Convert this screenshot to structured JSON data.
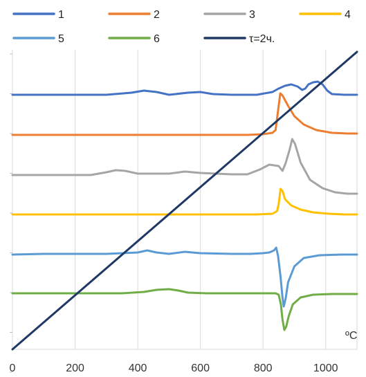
{
  "chart_data": {
    "type": "line",
    "title": "",
    "xlabel": "ºC",
    "ylabel": "",
    "xlim": [
      0,
      1100
    ],
    "x_ticks": [
      0,
      200,
      400,
      600,
      800,
      1000
    ],
    "grid": "vertical",
    "legend_position": "top",
    "series": [
      {
        "name": "1",
        "color": "#4472C4",
        "points": [
          [
            0,
            137
          ],
          [
            100,
            137
          ],
          [
            200,
            137
          ],
          [
            300,
            137
          ],
          [
            380,
            134
          ],
          [
            420,
            131
          ],
          [
            460,
            133
          ],
          [
            500,
            137
          ],
          [
            560,
            134
          ],
          [
            600,
            133
          ],
          [
            640,
            136
          ],
          [
            700,
            137
          ],
          [
            780,
            137
          ],
          [
            830,
            133
          ],
          [
            850,
            128
          ],
          [
            870,
            124
          ],
          [
            890,
            122
          ],
          [
            910,
            125
          ],
          [
            925,
            130
          ],
          [
            935,
            128
          ],
          [
            945,
            122
          ],
          [
            960,
            119
          ],
          [
            975,
            118
          ],
          [
            990,
            122
          ],
          [
            1005,
            131
          ],
          [
            1020,
            136
          ],
          [
            1060,
            137
          ],
          [
            1100,
            137
          ]
        ]
      },
      {
        "name": "2",
        "color": "#ED7D31",
        "points": [
          [
            0,
            195
          ],
          [
            200,
            195
          ],
          [
            400,
            195
          ],
          [
            600,
            195
          ],
          [
            750,
            195
          ],
          [
            800,
            194
          ],
          [
            830,
            192
          ],
          [
            840,
            188
          ],
          [
            848,
            160
          ],
          [
            855,
            135
          ],
          [
            862,
            138
          ],
          [
            880,
            153
          ],
          [
            900,
            168
          ],
          [
            930,
            180
          ],
          [
            970,
            188
          ],
          [
            1020,
            192
          ],
          [
            1070,
            193
          ],
          [
            1100,
            193
          ]
        ]
      },
      {
        "name": "3",
        "color": "#A5A5A5",
        "points": [
          [
            0,
            253
          ],
          [
            150,
            253
          ],
          [
            250,
            253
          ],
          [
            300,
            249
          ],
          [
            330,
            246
          ],
          [
            360,
            247
          ],
          [
            400,
            251
          ],
          [
            450,
            251
          ],
          [
            500,
            251
          ],
          [
            550,
            248
          ],
          [
            600,
            250
          ],
          [
            700,
            252
          ],
          [
            750,
            252
          ],
          [
            790,
            245
          ],
          [
            820,
            238
          ],
          [
            850,
            240
          ],
          [
            862,
            247
          ],
          [
            872,
            236
          ],
          [
            885,
            216
          ],
          [
            893,
            201
          ],
          [
            902,
            208
          ],
          [
            920,
            235
          ],
          [
            950,
            260
          ],
          [
            990,
            272
          ],
          [
            1030,
            278
          ],
          [
            1070,
            280
          ],
          [
            1100,
            280
          ]
        ]
      },
      {
        "name": "4",
        "color": "#FFC000",
        "points": [
          [
            0,
            310
          ],
          [
            200,
            310
          ],
          [
            400,
            310
          ],
          [
            600,
            310
          ],
          [
            780,
            310
          ],
          [
            830,
            309
          ],
          [
            845,
            305
          ],
          [
            850,
            295
          ],
          [
            856,
            273
          ],
          [
            862,
            276
          ],
          [
            870,
            288
          ],
          [
            890,
            297
          ],
          [
            920,
            303
          ],
          [
            960,
            307
          ],
          [
            1010,
            309
          ],
          [
            1060,
            310
          ],
          [
            1100,
            310
          ]
        ]
      },
      {
        "name": "5",
        "color": "#5B9BD5",
        "points": [
          [
            0,
            368
          ],
          [
            100,
            367
          ],
          [
            200,
            367
          ],
          [
            300,
            367
          ],
          [
            350,
            366
          ],
          [
            400,
            365
          ],
          [
            430,
            362
          ],
          [
            460,
            365
          ],
          [
            500,
            367
          ],
          [
            550,
            364
          ],
          [
            600,
            366
          ],
          [
            700,
            367
          ],
          [
            760,
            367
          ],
          [
            800,
            366
          ],
          [
            820,
            365
          ],
          [
            835,
            362
          ],
          [
            842,
            358
          ],
          [
            848,
            370
          ],
          [
            856,
            400
          ],
          [
            862,
            430
          ],
          [
            866,
            443
          ],
          [
            872,
            432
          ],
          [
            880,
            408
          ],
          [
            900,
            385
          ],
          [
            930,
            373
          ],
          [
            980,
            369
          ],
          [
            1050,
            368
          ],
          [
            1100,
            368
          ]
        ]
      },
      {
        "name": "6",
        "color": "#70AD47",
        "points": [
          [
            0,
            424
          ],
          [
            200,
            424
          ],
          [
            350,
            424
          ],
          [
            420,
            422
          ],
          [
            460,
            419
          ],
          [
            500,
            418
          ],
          [
            530,
            420
          ],
          [
            560,
            423
          ],
          [
            620,
            424
          ],
          [
            700,
            424
          ],
          [
            800,
            424
          ],
          [
            840,
            424
          ],
          [
            850,
            426
          ],
          [
            857,
            440
          ],
          [
            862,
            462
          ],
          [
            868,
            477
          ],
          [
            874,
            472
          ],
          [
            882,
            457
          ],
          [
            895,
            440
          ],
          [
            920,
            430
          ],
          [
            960,
            426
          ],
          [
            1020,
            425
          ],
          [
            1100,
            425
          ]
        ]
      },
      {
        "name": "τ=2ч.",
        "color": "#1F3864",
        "points": [
          [
            0,
            1
          ],
          [
            1100,
            3
          ]
        ]
      }
    ]
  }
}
